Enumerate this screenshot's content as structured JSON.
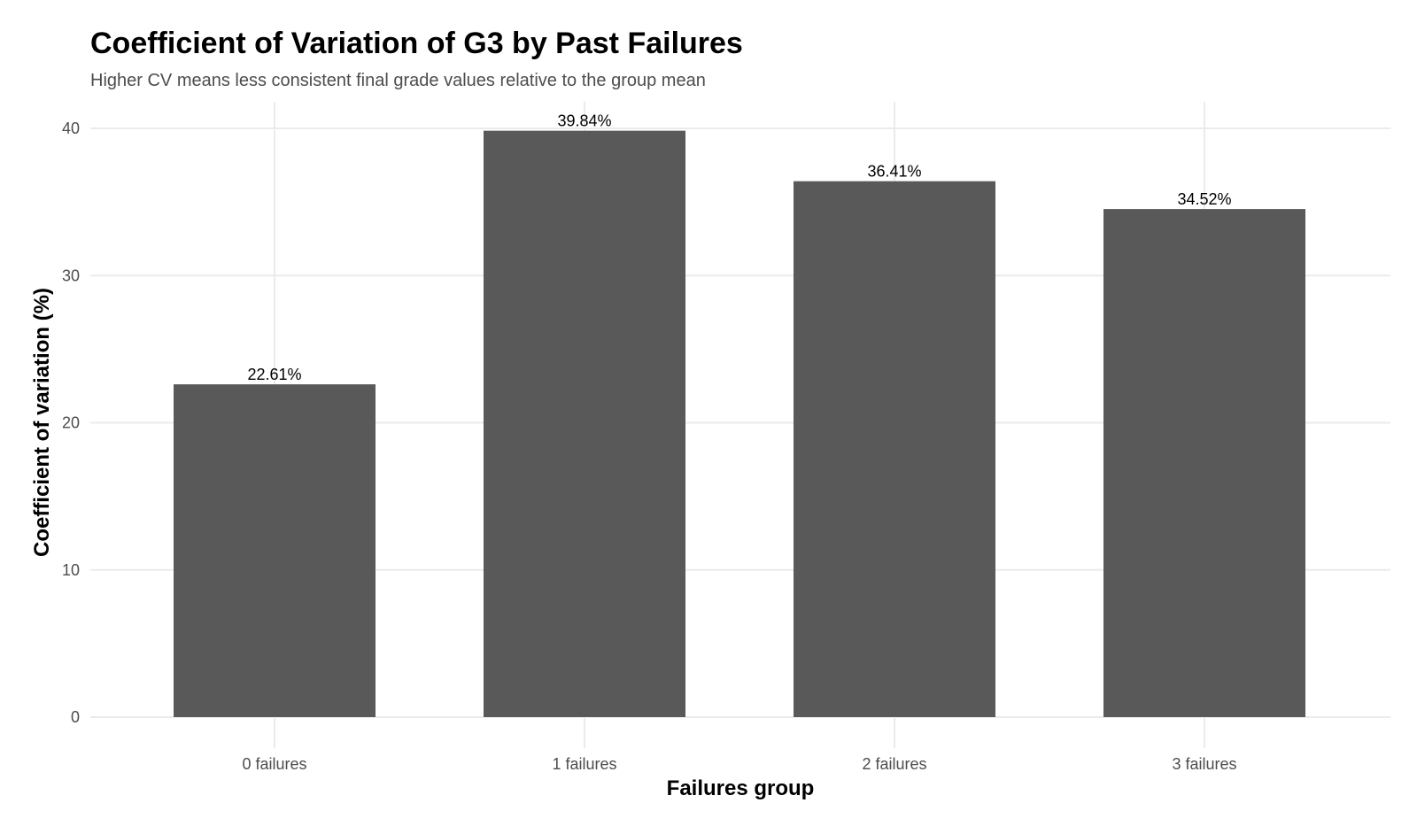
{
  "chart_data": {
    "type": "bar",
    "title": "Coefficient of Variation of G3 by Past Failures",
    "subtitle": "Higher CV means less consistent final grade values relative to the group mean",
    "xlabel": "Failures group",
    "ylabel": "Coefficient of variation (%)",
    "categories": [
      "0 failures",
      "1 failures",
      "2 failures",
      "3 failures"
    ],
    "values": [
      22.61,
      39.84,
      36.41,
      34.52
    ],
    "data_labels": [
      "22.61%",
      "39.84%",
      "36.41%",
      "34.52%"
    ],
    "ylim": [
      0,
      40
    ],
    "yticks": [
      0,
      10,
      20,
      30,
      40
    ],
    "grid": true,
    "legend": "none",
    "bar_color": "#595959",
    "grid_color": "#ebebeb"
  }
}
